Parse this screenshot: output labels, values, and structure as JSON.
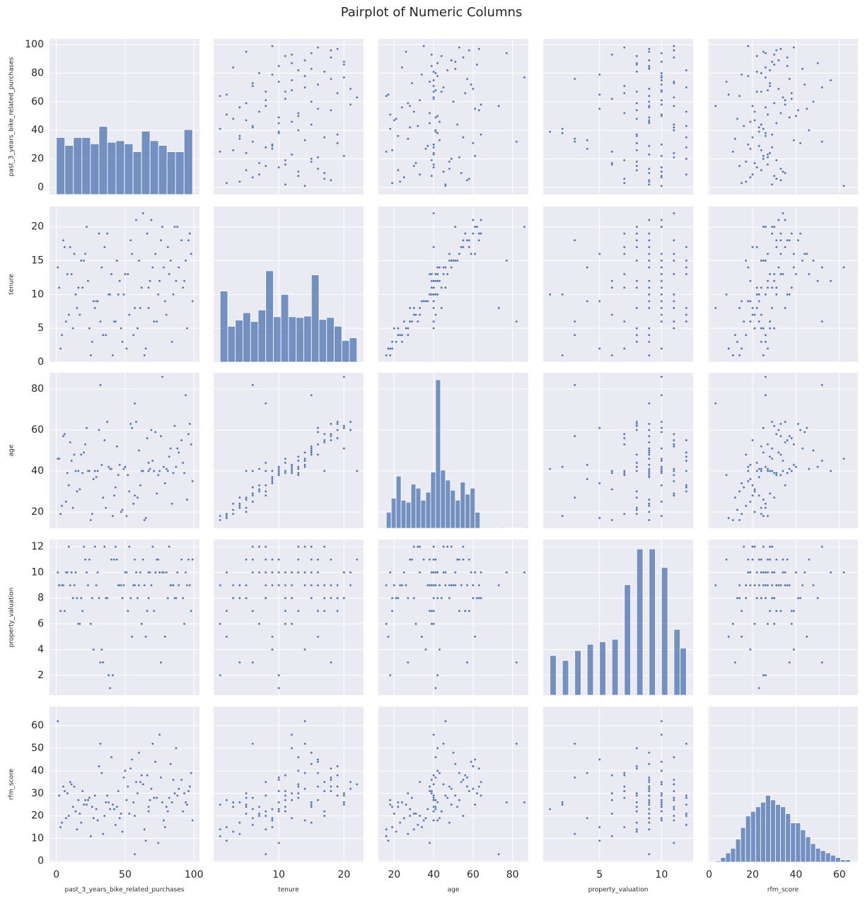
{
  "chart_data": {
    "type": "pairplot",
    "title": "Pairplot of Numeric Columns",
    "color": "#4c72b0",
    "grid": true,
    "variables": [
      {
        "name": "past_3_years_bike_related_purchases",
        "lim": [
          -5,
          104
        ],
        "xticks": [
          0,
          50,
          100
        ],
        "yticks": [
          0,
          20,
          40,
          60,
          80,
          100
        ],
        "bins": [
          0,
          6.19,
          12.38,
          18.56,
          24.75,
          30.94,
          37.13,
          43.31,
          49.5,
          55.69,
          61.88,
          68.06,
          74.25,
          80.44,
          86.63,
          92.81,
          99
        ],
        "counts": [
          216,
          186,
          216,
          216,
          192,
          258,
          198,
          204,
          192,
          162,
          240,
          204,
          186,
          162,
          162,
          246
        ],
        "count_lim": [
          0,
          590
        ]
      },
      {
        "name": "tenure",
        "lim": [
          0,
          23
        ],
        "xticks": [
          10,
          20
        ],
        "yticks": [
          0,
          5,
          10,
          15,
          20
        ],
        "bins": [
          1,
          2.17,
          3.33,
          4.5,
          5.67,
          6.83,
          8,
          9.17,
          10.33,
          11.5,
          12.67,
          13.83,
          15,
          16.17,
          17.33,
          18.5,
          19.67,
          20.83,
          22
        ],
        "counts": [
          315,
          159,
          186,
          219,
          180,
          231,
          405,
          201,
          300,
          201,
          198,
          204,
          387,
          189,
          198,
          159,
          96,
          108
        ],
        "count_lim": [
          0,
          690
        ]
      },
      {
        "name": "age",
        "lim": [
          12,
          88
        ],
        "xticks": [
          20,
          40,
          60,
          80
        ],
        "yticks": [
          20,
          40,
          60,
          80
        ],
        "bins": [
          16,
          18.5,
          21,
          23.5,
          26,
          28.5,
          31,
          33.5,
          36,
          38.5,
          41,
          43.5,
          46,
          48.5,
          51,
          53.5,
          56,
          58.5,
          61,
          63.5,
          66,
          68.5,
          71,
          73.5,
          76,
          78.5,
          81,
          83.5,
          86
        ],
        "counts": [
          80,
          150,
          260,
          140,
          130,
          220,
          200,
          140,
          180,
          280,
          740,
          290,
          240,
          190,
          140,
          230,
          170,
          200,
          80,
          0,
          0,
          0,
          2,
          0,
          2,
          0,
          2,
          2
        ],
        "count_lim": [
          0,
          775
        ]
      },
      {
        "name": "property_valuation",
        "lim": [
          0.45,
          12.55
        ],
        "xticks": [
          5,
          10
        ],
        "yticks": [
          2,
          4,
          6,
          8,
          10,
          12
        ],
        "bins": [
          1,
          1.5,
          2,
          2.5,
          3,
          3.5,
          4,
          4.5,
          5,
          5.5,
          6,
          6.5,
          7,
          7.5,
          8,
          8.5,
          9,
          9.5,
          10,
          10.5,
          11,
          11.5,
          12
        ],
        "counts": [
          144,
          0,
          126,
          0,
          162,
          0,
          185,
          0,
          194,
          0,
          203,
          0,
          401,
          0,
          531,
          0,
          531,
          0,
          464,
          0,
          239,
          171
        ],
        "count_lim": [
          0,
          565
        ]
      },
      {
        "name": "rfm_score",
        "lim": [
          -0.5,
          68.5
        ],
        "xticks": [
          0,
          20,
          40,
          60
        ],
        "yticks": [
          0,
          10,
          20,
          30,
          40,
          50,
          60
        ],
        "bins": [
          3,
          5.3,
          7.6,
          9.9,
          12.2,
          14.5,
          16.8,
          19.1,
          21.4,
          23.7,
          26,
          28.3,
          30.6,
          32.9,
          35.2,
          37.5,
          39.8,
          42.1,
          44.4,
          46.7,
          49,
          51.3,
          53.6,
          55.9,
          58.2,
          60.5,
          62.8,
          65.1
        ],
        "counts": [
          5,
          20,
          40,
          60,
          100,
          150,
          200,
          220,
          240,
          260,
          290,
          270,
          250,
          240,
          210,
          170,
          170,
          140,
          110,
          80,
          60,
          50,
          40,
          30,
          20,
          10,
          10
        ],
        "count_lim": [
          0,
          675
        ]
      }
    ],
    "rows": [
      [
        12,
        5,
        22,
        8,
        24
      ],
      [
        45,
        10,
        38,
        9,
        31
      ],
      [
        78,
        14,
        42,
        10,
        18
      ],
      [
        3,
        2,
        19,
        7,
        15
      ],
      [
        91,
        18,
        55,
        11,
        36
      ],
      [
        67,
        8,
        44,
        8,
        22
      ],
      [
        23,
        12,
        40,
        9,
        27
      ],
      [
        55,
        16,
        61,
        5,
        45
      ],
      [
        34,
        4,
        27,
        3,
        12
      ],
      [
        88,
        20,
        51,
        10,
        29
      ],
      [
        9,
        7,
        33,
        12,
        20
      ],
      [
        62,
        11,
        40,
        6,
        38
      ],
      [
        41,
        1,
        18,
        2,
        25
      ],
      [
        97,
        19,
        63,
        9,
        33
      ],
      [
        18,
        15,
        48,
        8,
        17
      ],
      [
        73,
        6,
        29,
        11,
        28
      ],
      [
        50,
        13,
        42,
        10,
        40
      ],
      [
        27,
        9,
        36,
        4,
        19
      ],
      [
        84,
        3,
        24,
        9,
        26
      ],
      [
        6,
        17,
        58,
        7,
        31
      ],
      [
        39,
        10,
        41,
        1,
        23
      ],
      [
        58,
        21,
        64,
        10,
        35
      ],
      [
        15,
        8,
        30,
        8,
        14
      ],
      [
        70,
        14,
        45,
        12,
        52
      ],
      [
        47,
        5,
        20,
        9,
        21
      ],
      [
        93,
        12,
        39,
        6,
        30
      ],
      [
        21,
        16,
        53,
        11,
        27
      ],
      [
        65,
        2,
        17,
        5,
        9
      ],
      [
        31,
        19,
        60,
        8,
        42
      ],
      [
        80,
        7,
        41,
        10,
        24
      ],
      [
        2,
        11,
        46,
        9,
        29
      ],
      [
        52,
        13,
        38,
        7,
        33
      ],
      [
        99,
        9,
        35,
        11,
        18
      ],
      [
        36,
        4,
        22,
        8,
        26
      ],
      [
        76,
        18,
        57,
        3,
        37
      ],
      [
        14,
        10,
        40,
        10,
        22
      ],
      [
        60,
        15,
        50,
        9,
        48
      ],
      [
        43,
        6,
        32,
        12,
        16
      ],
      [
        86,
        20,
        62,
        8,
        30
      ],
      [
        25,
        1,
        16,
        6,
        11
      ],
      [
        68,
        12,
        41,
        10,
        27
      ],
      [
        10,
        17,
        54,
        9,
        35
      ],
      [
        57,
        8,
        28,
        11,
        20
      ],
      [
        33,
        14,
        43,
        4,
        39
      ],
      [
        95,
        5,
        26,
        9,
        25
      ],
      [
        19,
        11,
        39,
        7,
        31
      ],
      [
        72,
        16,
        59,
        10,
        44
      ],
      [
        48,
        3,
        21,
        8,
        13
      ],
      [
        82,
        13,
        47,
        12,
        28
      ],
      [
        29,
        9,
        37,
        9,
        23
      ],
      [
        63,
        22,
        40,
        11,
        34
      ],
      [
        7,
        6,
        25,
        10,
        19
      ],
      [
        54,
        18,
        63,
        8,
        41
      ],
      [
        38,
        10,
        42,
        2,
        26
      ],
      [
        89,
        14,
        49,
        9,
        32
      ],
      [
        17,
        7,
        31,
        6,
        21
      ],
      [
        75,
        12,
        40,
        10,
        56
      ],
      [
        44,
        15,
        52,
        11,
        24
      ],
      [
        4,
        4,
        23,
        9,
        17
      ],
      [
        66,
        19,
        56,
        7,
        38
      ],
      [
        28,
        8,
        40,
        12,
        29
      ],
      [
        92,
        11,
        44,
        8,
        22
      ],
      [
        51,
        2,
        18,
        10,
        27
      ],
      [
        13,
        16,
        48,
        9,
        33
      ],
      [
        79,
        9,
        34,
        5,
        15
      ],
      [
        40,
        13,
        41,
        11,
        46
      ],
      [
        59,
        5,
        27,
        8,
        30
      ],
      [
        22,
        20,
        61,
        10,
        25
      ],
      [
        85,
        10,
        39,
        9,
        36
      ],
      [
        35,
        17,
        55,
        12,
        20
      ],
      [
        71,
        6,
        40,
        7,
        28
      ],
      [
        1,
        14,
        46,
        10,
        62
      ],
      [
        46,
        12,
        43,
        9,
        19
      ],
      [
        96,
        18,
        58,
        11,
        31
      ],
      [
        26,
        3,
        19,
        8,
        24
      ],
      [
        61,
        8,
        33,
        10,
        35
      ],
      [
        16,
        11,
        40,
        6,
        27
      ],
      [
        83,
        15,
        51,
        9,
        43
      ],
      [
        53,
        7,
        30,
        12,
        21
      ],
      [
        37,
        19,
        64,
        8,
        29
      ],
      [
        74,
        10,
        38,
        11,
        8
      ],
      [
        11,
        13,
        45,
        10,
        34
      ],
      [
        56,
        4,
        24,
        9,
        26
      ],
      [
        98,
        16,
        53,
        7,
        39
      ],
      [
        30,
        9,
        40,
        10,
        18
      ],
      [
        69,
        21,
        60,
        9,
        32
      ],
      [
        42,
        6,
        28,
        11,
        23
      ],
      [
        87,
        12,
        42,
        8,
        50
      ],
      [
        20,
        15,
        49,
        12,
        25
      ],
      [
        64,
        1,
        16,
        9,
        14
      ],
      [
        94,
        15,
        77,
        10,
        26
      ],
      [
        57,
        8,
        73,
        9,
        3
      ],
      [
        77,
        20,
        86,
        10,
        26
      ],
      [
        32,
        6,
        82,
        3,
        52
      ],
      [
        8,
        13,
        39,
        10,
        30
      ],
      [
        49,
        10,
        41,
        9,
        37
      ],
      [
        81,
        17,
        40,
        8,
        22
      ],
      [
        24,
        5,
        40,
        11,
        28
      ],
      [
        67,
        11,
        40,
        10,
        24
      ],
      [
        5,
        18,
        57,
        9,
        33
      ]
    ]
  }
}
